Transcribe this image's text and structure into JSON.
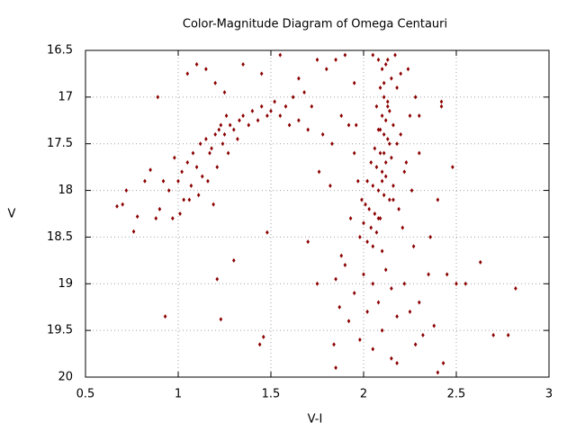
{
  "chart_data": {
    "type": "scatter",
    "title": "Color-Magnitude Diagram of Omega Centauri",
    "x_label": "V-I",
    "y_label": "V",
    "xlim": [
      0.5,
      3
    ],
    "ylim": [
      16.5,
      20
    ],
    "y_inverted": true,
    "xticks": [
      0.5,
      1,
      1.5,
      2,
      2.5,
      3
    ],
    "yticks": [
      16.5,
      17,
      17.5,
      18,
      18.5,
      19,
      19.5,
      20
    ],
    "grid": true,
    "color": "#8b0000",
    "x": [
      2.05,
      2.08,
      2.1,
      2.12,
      2.15,
      2.09,
      2.11,
      2.13,
      2.07,
      2.14,
      2.1,
      2.12,
      2.16,
      2.08,
      2.11,
      2.13,
      2.18,
      2.06,
      2.09,
      2.15,
      2.04,
      2.07,
      2.1,
      2.12,
      2.02,
      2.05,
      2.08,
      2.11,
      2.14,
      2.01,
      2.03,
      2.06,
      2.09,
      2.0,
      2.04,
      2.07,
      1.98,
      2.02,
      2.05,
      2.1,
      1.95,
      2.2,
      2.25,
      1.97,
      2.22,
      2.18,
      1.99,
      2.24,
      2.28,
      2.19,
      2.3,
      2.26,
      1.93,
      2.21,
      2.17,
      1.96,
      2.23,
      2.27,
      2.16,
      2.2,
      1.9,
      2.0,
      2.05,
      1.88,
      2.12,
      1.95,
      2.08,
      2.15,
      1.85,
      2.02,
      1.92,
      2.18,
      2.22,
      2.1,
      1.98,
      2.25,
      2.3,
      1.87,
      2.35,
      2.05,
      1.0,
      1.02,
      1.05,
      1.08,
      1.1,
      1.12,
      1.15,
      1.18,
      1.2,
      1.22,
      1.25,
      1.28,
      1.3,
      1.33,
      1.35,
      1.38,
      1.4,
      1.43,
      1.45,
      1.48,
      1.5,
      1.52,
      1.55,
      1.58,
      1.6,
      1.62,
      1.65,
      1.68,
      1.7,
      1.72,
      0.95,
      0.98,
      1.03,
      1.07,
      1.13,
      1.17,
      1.21,
      1.24,
      1.27,
      1.32,
      0.9,
      0.92,
      0.97,
      1.01,
      1.06,
      1.11,
      1.16,
      1.19,
      1.23,
      1.26,
      0.67,
      0.7,
      0.72,
      0.76,
      0.78,
      0.82,
      0.85,
      0.88,
      0.89,
      0.93,
      1.05,
      1.1,
      1.15,
      1.2,
      1.25,
      1.35,
      1.45,
      1.55,
      1.65,
      1.75,
      1.8,
      1.85,
      1.9,
      1.95,
      1.78,
      1.83,
      1.88,
      1.76,
      1.82,
      1.92,
      1.21,
      1.23,
      1.44,
      1.46,
      1.3,
      1.48,
      1.7,
      1.75,
      1.84,
      1.85,
      2.4,
      2.42,
      2.45,
      2.48,
      2.5,
      2.55,
      2.63,
      2.7,
      2.78,
      2.82,
      2.38,
      2.4,
      2.43,
      2.32,
      2.36,
      2.15,
      2.18,
      2.28,
      2.3,
      2.42,
      2.11,
      2.13,
      2.09,
      2.14,
      2.12,
      2.1,
      2.16,
      2.08,
      2.13,
      2.11
    ],
    "y": [
      16.55,
      16.6,
      16.7,
      16.65,
      16.8,
      16.9,
      17.0,
      17.05,
      17.1,
      17.15,
      17.2,
      17.25,
      17.3,
      17.35,
      17.4,
      17.45,
      17.5,
      17.55,
      17.6,
      17.65,
      17.7,
      17.75,
      17.8,
      17.85,
      17.9,
      17.95,
      18.0,
      18.05,
      18.1,
      18.15,
      18.2,
      18.25,
      18.3,
      18.35,
      18.4,
      18.45,
      18.5,
      18.55,
      18.6,
      18.65,
      17.6,
      17.4,
      17.2,
      17.9,
      17.8,
      16.9,
      18.1,
      16.7,
      17.0,
      18.2,
      17.6,
      18.0,
      18.3,
      18.4,
      16.55,
      17.3,
      17.7,
      18.6,
      17.95,
      16.75,
      18.8,
      18.9,
      19.0,
      18.7,
      18.85,
      19.1,
      19.2,
      19.05,
      18.95,
      19.3,
      19.4,
      19.35,
      19.0,
      19.5,
      19.6,
      19.3,
      19.2,
      19.25,
      18.9,
      19.7,
      17.9,
      17.8,
      17.7,
      17.6,
      17.75,
      17.5,
      17.45,
      17.55,
      17.4,
      17.35,
      17.4,
      17.3,
      17.35,
      17.25,
      17.2,
      17.3,
      17.15,
      17.25,
      17.1,
      17.2,
      17.15,
      17.05,
      17.2,
      17.1,
      17.3,
      17.0,
      17.25,
      16.95,
      17.35,
      17.1,
      18.0,
      17.65,
      18.1,
      17.95,
      17.85,
      17.6,
      17.75,
      17.5,
      17.6,
      17.45,
      18.2,
      17.9,
      18.3,
      18.25,
      18.1,
      18.05,
      17.9,
      18.15,
      17.3,
      17.2,
      18.17,
      18.15,
      18.0,
      18.44,
      18.28,
      17.9,
      17.78,
      18.3,
      17.0,
      19.35,
      16.75,
      16.65,
      16.7,
      16.85,
      16.95,
      16.65,
      16.75,
      16.55,
      16.8,
      16.6,
      16.7,
      16.6,
      16.55,
      16.85,
      17.4,
      17.5,
      17.2,
      17.8,
      17.95,
      17.3,
      18.95,
      19.38,
      19.65,
      19.57,
      18.75,
      18.45,
      18.55,
      19.0,
      19.65,
      19.9,
      18.1,
      17.05,
      18.9,
      17.75,
      19.0,
      19.0,
      18.77,
      19.55,
      19.55,
      19.05,
      19.45,
      19.95,
      19.85,
      19.55,
      18.5,
      19.8,
      19.85,
      19.65,
      17.2,
      17.1,
      16.85,
      17.1,
      17.35,
      17.5,
      17.7,
      17.9,
      18.1,
      18.3,
      16.6,
      17.6
    ]
  }
}
